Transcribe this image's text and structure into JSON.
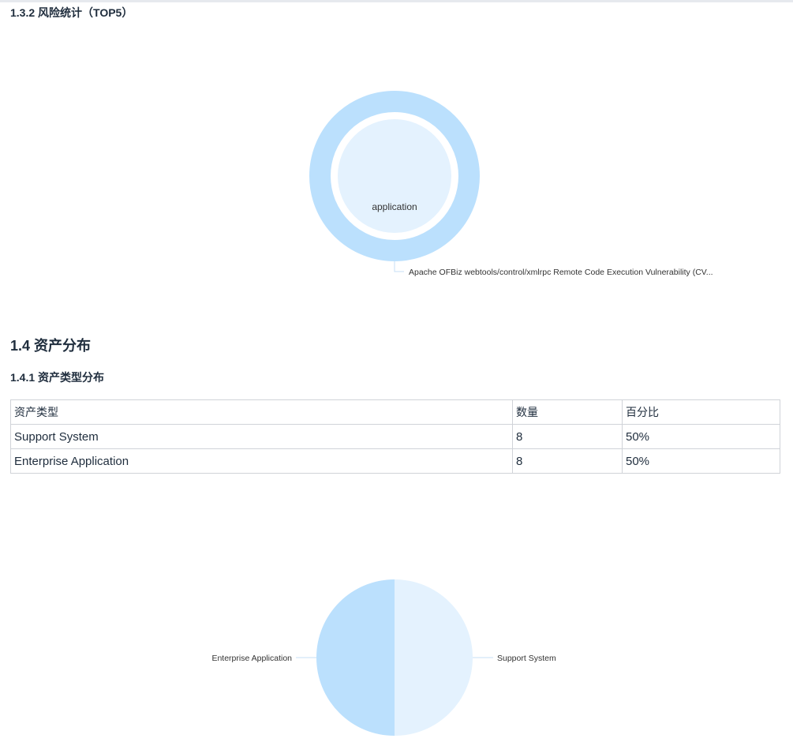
{
  "sections": {
    "risk_title": "1.3.2 风险统计（TOP5）",
    "asset_title": "1.4 资产分布",
    "asset_type_title": "1.4.1 资产类型分布"
  },
  "asset_table": {
    "headers": [
      "资产类型",
      "数量",
      "百分比"
    ],
    "rows": [
      [
        "Support System",
        "8",
        "50%"
      ],
      [
        "Enterprise Application",
        "8",
        "50%"
      ]
    ]
  },
  "colors": {
    "light_blue": "#bbe0fd",
    "pale_blue": "#e4f2fe",
    "leader_line": "#c7dff5"
  },
  "chart_data": [
    {
      "type": "pie",
      "variant": "sunburst",
      "inner": {
        "label": "application",
        "value": 1
      },
      "outer": [
        {
          "label": "Apache OFBiz webtools/control/xmlrpc Remote Code Execution Vulnerability (CV...",
          "value": 1
        }
      ]
    },
    {
      "type": "pie",
      "slices": [
        {
          "label": "Support System",
          "value": 8,
          "percent": 50
        },
        {
          "label": "Enterprise Application",
          "value": 8,
          "percent": 50
        }
      ]
    }
  ]
}
